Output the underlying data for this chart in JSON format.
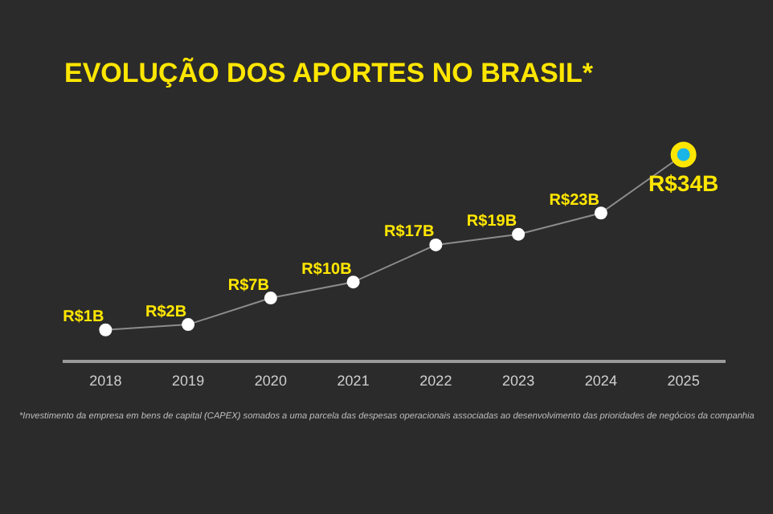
{
  "chart_data": {
    "type": "line",
    "title": "EVOLUÇÃO DOS APORTES NO BRASIL*",
    "categories": [
      "2018",
      "2019",
      "2020",
      "2021",
      "2022",
      "2023",
      "2024",
      "2025"
    ],
    "series": [
      {
        "color": "#8c8c8c",
        "values": [
          1000000000,
          2000000000,
          7000000000,
          10000000000,
          17000000000,
          19000000000,
          23000000000,
          34000000000
        ],
        "colors": [
          "#ffffff",
          "#ffffff",
          "#ffffff",
          "#ffffff",
          "#ffffff",
          "#ffffff",
          "#ffffff",
          "#19b5e6"
        ],
        "value_labels": [
          "R$1B",
          "R$2B",
          "R$7B",
          "R$10B",
          "R$17B",
          "R$19B",
          "R$23B",
          "R$34B"
        ]
      }
    ],
    "marker": "circle",
    "legend": false,
    "annotations": [
      "*Investimento da empresa em bens de capital (CAPEX) somados a uma parcela das despesas operacionais associadas ao desenvolvimento das prioridades de negócios da companhia"
    ]
  }
}
